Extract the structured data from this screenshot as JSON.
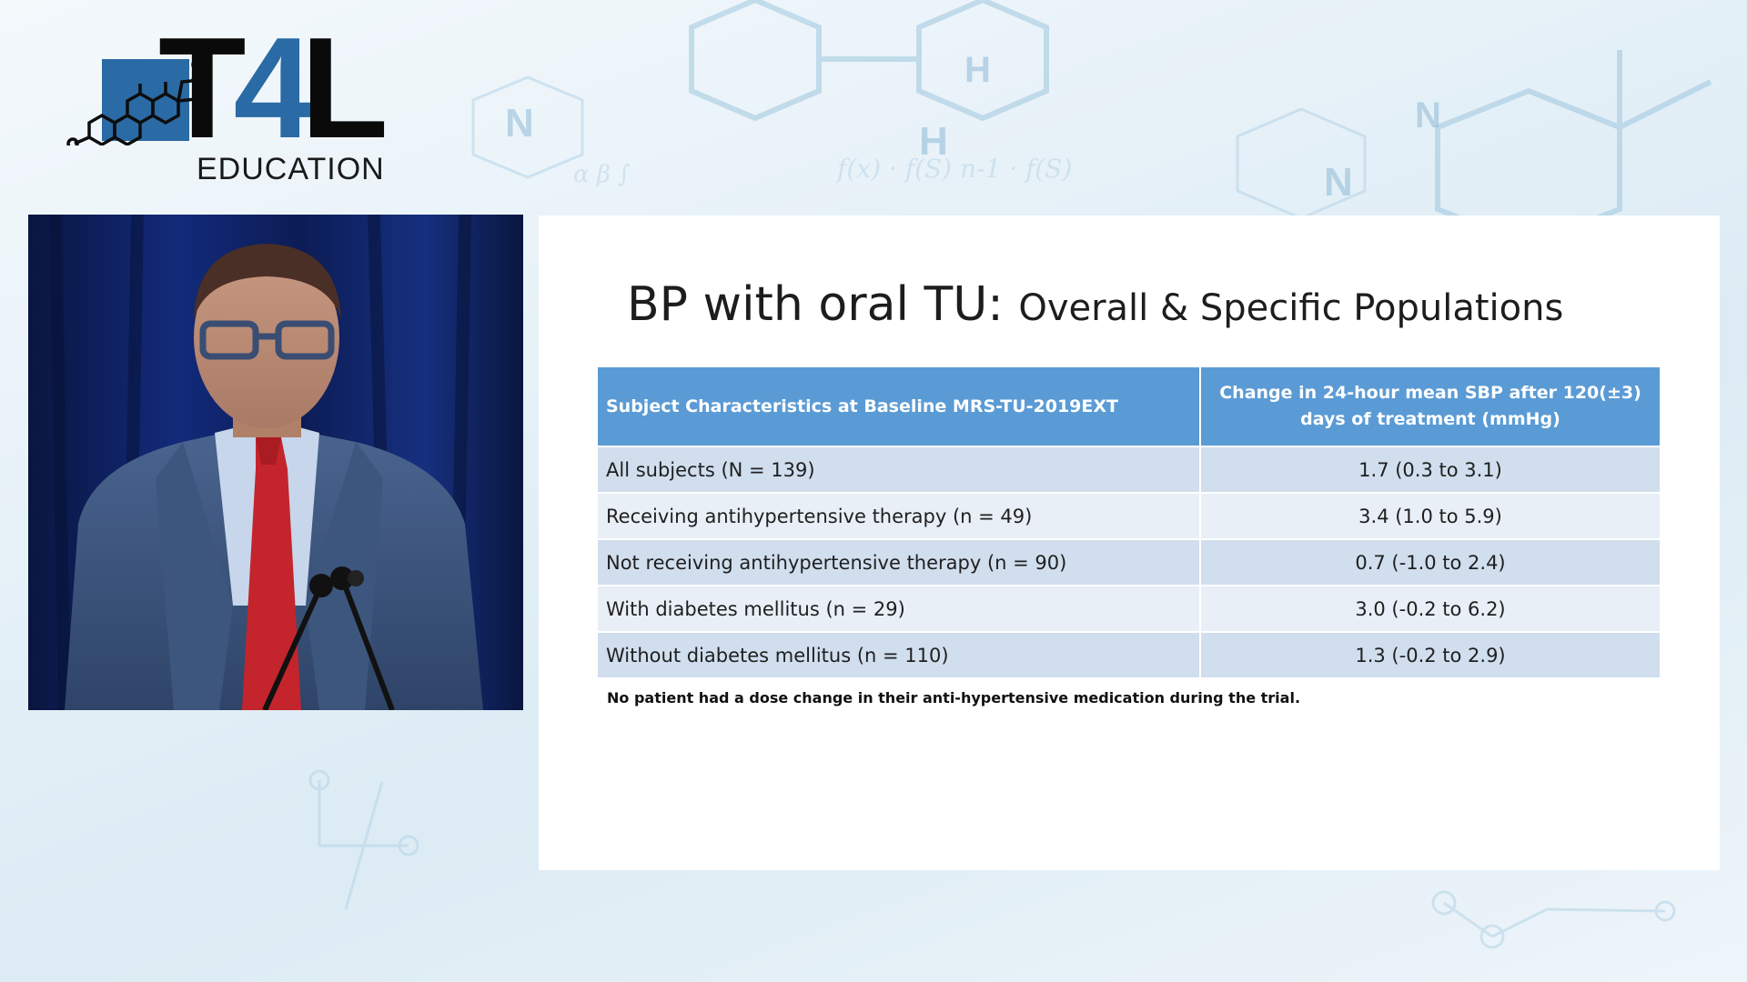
{
  "logo": {
    "brand_prefix": "T",
    "brand_digit": "4",
    "brand_suffix": "L",
    "subtitle": "EDUCATION"
  },
  "slide": {
    "title_main": "BP with oral TU: ",
    "title_sub": "Overall & Specific Populations",
    "table": {
      "headers": [
        "Subject Characteristics at Baseline MRS-TU-2019EXT",
        "Change in 24-hour mean SBP after 120(±3) days of treatment (mmHg)"
      ],
      "rows": [
        [
          "All subjects (N = 139)",
          "1.7 (0.3 to 3.1)"
        ],
        [
          "Receiving antihypertensive therapy (n = 49)",
          "3.4 (1.0 to 5.9)"
        ],
        [
          "Not receiving antihypertensive therapy (n = 90)",
          "0.7 (-1.0 to 2.4)"
        ],
        [
          "With diabetes mellitus (n = 29)",
          "3.0 (-0.2 to 6.2)"
        ],
        [
          "Without diabetes mellitus (n = 110)",
          "1.3 (-0.2 to 2.9)"
        ]
      ]
    },
    "footnote": "No patient had a dose change in their anti-hypertensive medication during the trial."
  },
  "video": {
    "description_icon": "presenter-video-feed"
  },
  "colors": {
    "header_blue": "#5a9bd5",
    "row_dark": "#d0deee",
    "row_light": "#e9eff7",
    "logo_blue": "#2a6aa5"
  }
}
